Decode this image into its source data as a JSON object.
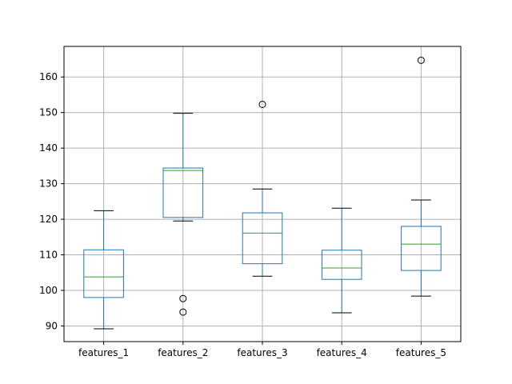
{
  "chart_data": {
    "type": "boxplot",
    "title": "",
    "xlabel": "",
    "ylabel": "",
    "ylim": [
      85.6,
      168.6
    ],
    "yticks": [
      90,
      100,
      110,
      120,
      130,
      140,
      150,
      160
    ],
    "grid": true,
    "colors": {
      "box": "#1f77b4",
      "median": "#2ca02c",
      "whisker": "#1f77b4",
      "cap": "#000000",
      "flier": "#000000",
      "grid": "#b0b0b0"
    },
    "categories": [
      "features_1",
      "features_2",
      "features_3",
      "features_4",
      "features_5"
    ],
    "boxes": [
      {
        "label": "features_1",
        "whislo": 89.2,
        "q1": 98.0,
        "med": 103.8,
        "q3": 111.4,
        "whishi": 122.4,
        "fliers": []
      },
      {
        "label": "features_2",
        "whislo": 119.5,
        "q1": 120.5,
        "med": 133.7,
        "q3": 134.4,
        "whishi": 149.8,
        "fliers": [
          97.7,
          93.9
        ]
      },
      {
        "label": "features_3",
        "whislo": 104.0,
        "q1": 107.5,
        "med": 116.1,
        "q3": 121.8,
        "whishi": 128.5,
        "fliers": [
          152.3
        ]
      },
      {
        "label": "features_4",
        "whislo": 93.7,
        "q1": 103.1,
        "med": 106.3,
        "q3": 111.3,
        "whishi": 123.1,
        "fliers": []
      },
      {
        "label": "features_5",
        "whislo": 98.4,
        "q1": 105.6,
        "med": 113.0,
        "q3": 118.0,
        "whishi": 125.4,
        "fliers": [
          164.7
        ]
      }
    ]
  }
}
